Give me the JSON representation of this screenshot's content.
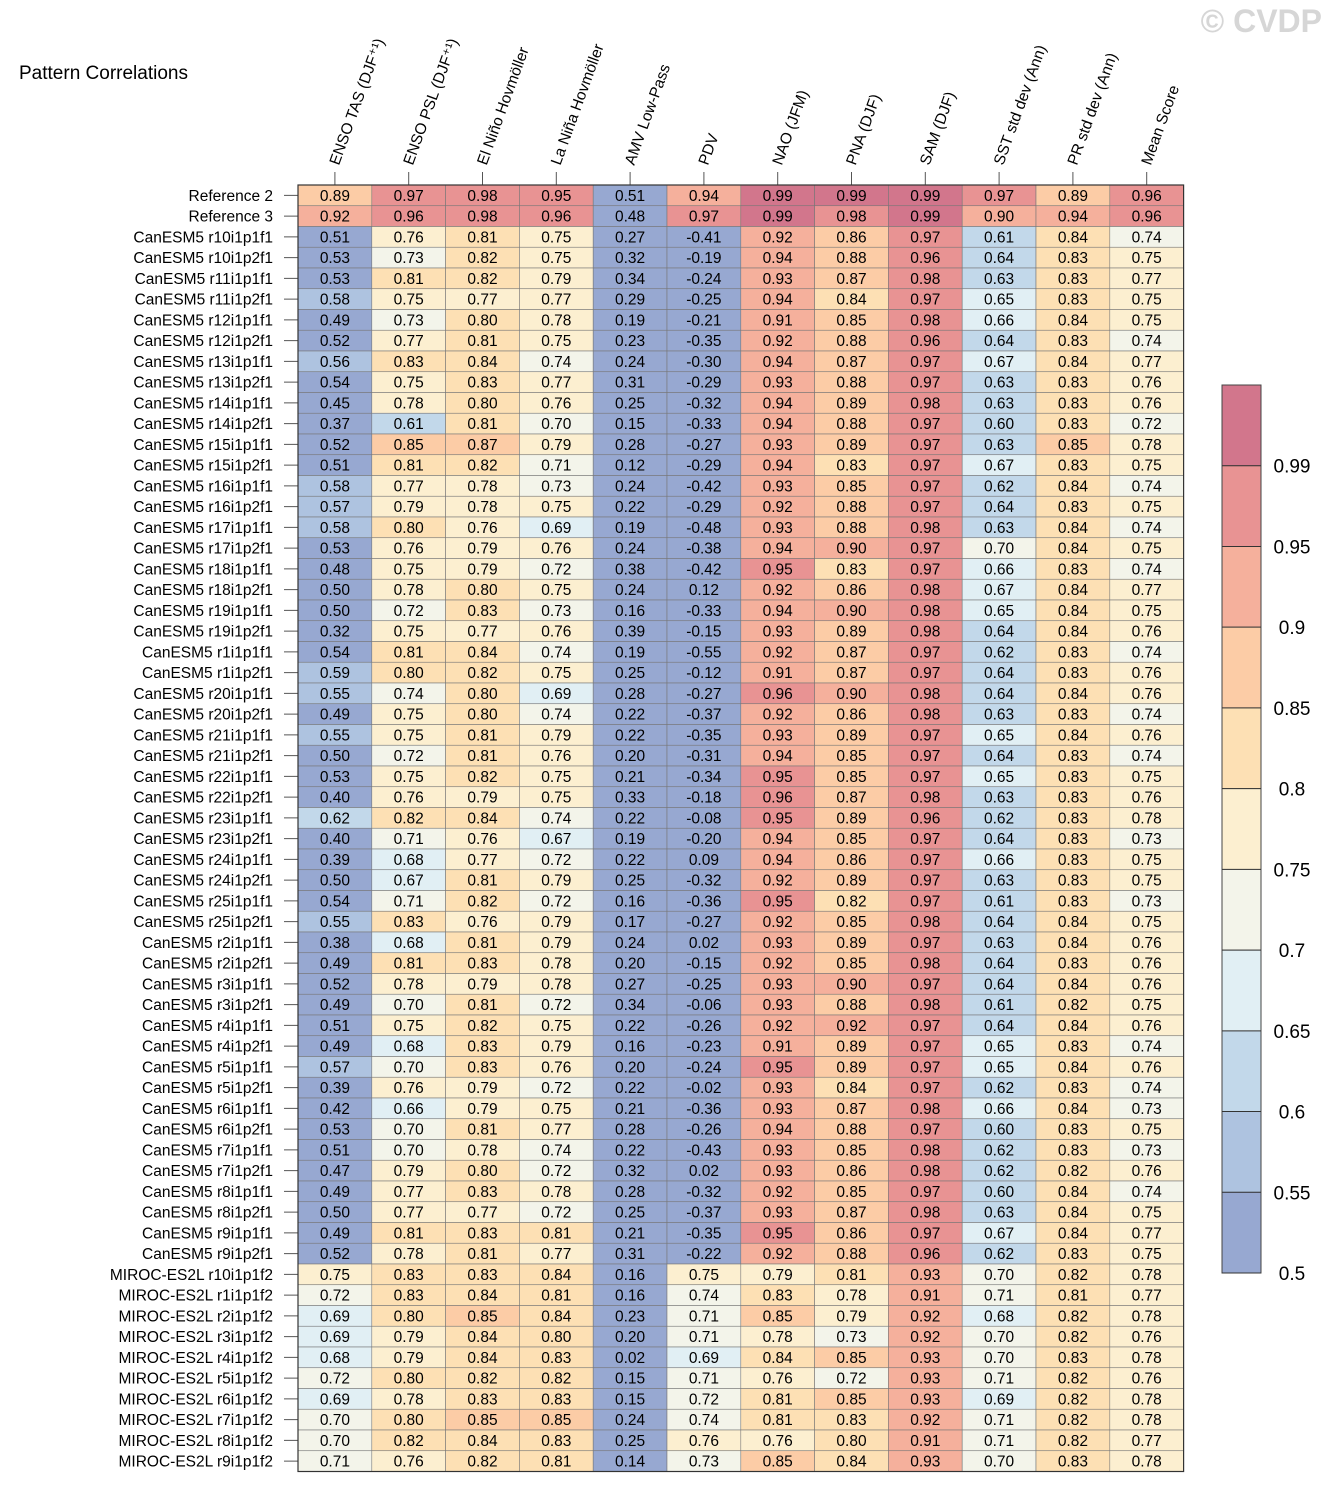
{
  "watermark": "© CVDP",
  "chart_data": {
    "type": "heatmap",
    "title": "Pattern Correlations",
    "columns": [
      "ENSO TAS (DJF⁺¹)",
      "ENSO PSL (DJF⁺¹)",
      "El Niño Hovmöller",
      "La Niña Hovmöller",
      "AMV Low-Pass",
      "PDV",
      "NAO (JFM)",
      "PNA (DJF)",
      "SAM (DJF)",
      "SST std dev (Ann)",
      "PR std dev (Ann)",
      "Mean Score"
    ],
    "rows": [
      "Reference 2",
      "Reference 3",
      "CanESM5 r10i1p1f1",
      "CanESM5 r10i1p2f1",
      "CanESM5 r11i1p1f1",
      "CanESM5 r11i1p2f1",
      "CanESM5 r12i1p1f1",
      "CanESM5 r12i1p2f1",
      "CanESM5 r13i1p1f1",
      "CanESM5 r13i1p2f1",
      "CanESM5 r14i1p1f1",
      "CanESM5 r14i1p2f1",
      "CanESM5 r15i1p1f1",
      "CanESM5 r15i1p2f1",
      "CanESM5 r16i1p1f1",
      "CanESM5 r16i1p2f1",
      "CanESM5 r17i1p1f1",
      "CanESM5 r17i1p2f1",
      "CanESM5 r18i1p1f1",
      "CanESM5 r18i1p2f1",
      "CanESM5 r19i1p1f1",
      "CanESM5 r19i1p2f1",
      "CanESM5 r1i1p1f1",
      "CanESM5 r1i1p2f1",
      "CanESM5 r20i1p1f1",
      "CanESM5 r20i1p2f1",
      "CanESM5 r21i1p1f1",
      "CanESM5 r21i1p2f1",
      "CanESM5 r22i1p1f1",
      "CanESM5 r22i1p2f1",
      "CanESM5 r23i1p1f1",
      "CanESM5 r23i1p2f1",
      "CanESM5 r24i1p1f1",
      "CanESM5 r24i1p2f1",
      "CanESM5 r25i1p1f1",
      "CanESM5 r25i1p2f1",
      "CanESM5 r2i1p1f1",
      "CanESM5 r2i1p2f1",
      "CanESM5 r3i1p1f1",
      "CanESM5 r3i1p2f1",
      "CanESM5 r4i1p1f1",
      "CanESM5 r4i1p2f1",
      "CanESM5 r5i1p1f1",
      "CanESM5 r5i1p2f1",
      "CanESM5 r6i1p1f1",
      "CanESM5 r6i1p2f1",
      "CanESM5 r7i1p1f1",
      "CanESM5 r7i1p2f1",
      "CanESM5 r8i1p1f1",
      "CanESM5 r8i1p2f1",
      "CanESM5 r9i1p1f1",
      "CanESM5 r9i1p2f1",
      "MIROC-ES2L r10i1p1f2",
      "MIROC-ES2L r1i1p1f2",
      "MIROC-ES2L r2i1p1f2",
      "MIROC-ES2L r3i1p1f2",
      "MIROC-ES2L r4i1p1f2",
      "MIROC-ES2L r5i1p1f2",
      "MIROC-ES2L r6i1p1f2",
      "MIROC-ES2L r7i1p1f2",
      "MIROC-ES2L r8i1p1f2",
      "MIROC-ES2L r9i1p1f2"
    ],
    "values": [
      [
        "0.89",
        "0.97",
        "0.98",
        "0.95",
        "0.51",
        "0.94",
        "0.99",
        "0.99",
        "0.99",
        "0.97",
        "0.89",
        "0.96"
      ],
      [
        "0.92",
        "0.96",
        "0.98",
        "0.96",
        "0.48",
        "0.97",
        "0.99",
        "0.98",
        "0.99",
        "0.90",
        "0.94",
        "0.96"
      ],
      [
        "0.51",
        "0.76",
        "0.81",
        "0.75",
        "0.27",
        "-0.41",
        "0.92",
        "0.86",
        "0.97",
        "0.61",
        "0.84",
        "0.74"
      ],
      [
        "0.53",
        "0.73",
        "0.82",
        "0.75",
        "0.32",
        "-0.19",
        "0.94",
        "0.88",
        "0.96",
        "0.64",
        "0.83",
        "0.75"
      ],
      [
        "0.53",
        "0.81",
        "0.82",
        "0.79",
        "0.34",
        "-0.24",
        "0.93",
        "0.87",
        "0.98",
        "0.63",
        "0.83",
        "0.77"
      ],
      [
        "0.58",
        "0.75",
        "0.77",
        "0.77",
        "0.29",
        "-0.25",
        "0.94",
        "0.84",
        "0.97",
        "0.65",
        "0.83",
        "0.75"
      ],
      [
        "0.49",
        "0.73",
        "0.80",
        "0.78",
        "0.19",
        "-0.21",
        "0.91",
        "0.85",
        "0.98",
        "0.66",
        "0.84",
        "0.75"
      ],
      [
        "0.52",
        "0.77",
        "0.81",
        "0.75",
        "0.23",
        "-0.35",
        "0.92",
        "0.88",
        "0.96",
        "0.64",
        "0.83",
        "0.74"
      ],
      [
        "0.56",
        "0.83",
        "0.84",
        "0.74",
        "0.24",
        "-0.30",
        "0.94",
        "0.87",
        "0.97",
        "0.67",
        "0.84",
        "0.77"
      ],
      [
        "0.54",
        "0.75",
        "0.83",
        "0.77",
        "0.31",
        "-0.29",
        "0.93",
        "0.88",
        "0.97",
        "0.63",
        "0.83",
        "0.76"
      ],
      [
        "0.45",
        "0.78",
        "0.80",
        "0.76",
        "0.25",
        "-0.32",
        "0.94",
        "0.89",
        "0.98",
        "0.63",
        "0.83",
        "0.76"
      ],
      [
        "0.37",
        "0.61",
        "0.81",
        "0.70",
        "0.15",
        "-0.33",
        "0.94",
        "0.88",
        "0.97",
        "0.60",
        "0.83",
        "0.72"
      ],
      [
        "0.52",
        "0.85",
        "0.87",
        "0.79",
        "0.28",
        "-0.27",
        "0.93",
        "0.89",
        "0.97",
        "0.63",
        "0.85",
        "0.78"
      ],
      [
        "0.51",
        "0.81",
        "0.82",
        "0.71",
        "0.12",
        "-0.29",
        "0.94",
        "0.83",
        "0.97",
        "0.67",
        "0.83",
        "0.75"
      ],
      [
        "0.58",
        "0.77",
        "0.78",
        "0.73",
        "0.24",
        "-0.42",
        "0.93",
        "0.85",
        "0.97",
        "0.62",
        "0.84",
        "0.74"
      ],
      [
        "0.57",
        "0.79",
        "0.78",
        "0.75",
        "0.22",
        "-0.29",
        "0.92",
        "0.88",
        "0.97",
        "0.64",
        "0.83",
        "0.75"
      ],
      [
        "0.58",
        "0.80",
        "0.76",
        "0.69",
        "0.19",
        "-0.48",
        "0.93",
        "0.88",
        "0.98",
        "0.63",
        "0.84",
        "0.74"
      ],
      [
        "0.53",
        "0.76",
        "0.79",
        "0.76",
        "0.24",
        "-0.38",
        "0.94",
        "0.90",
        "0.97",
        "0.70",
        "0.84",
        "0.75"
      ],
      [
        "0.48",
        "0.75",
        "0.79",
        "0.72",
        "0.38",
        "-0.42",
        "0.95",
        "0.83",
        "0.97",
        "0.66",
        "0.83",
        "0.74"
      ],
      [
        "0.50",
        "0.78",
        "0.80",
        "0.75",
        "0.24",
        "0.12",
        "0.92",
        "0.86",
        "0.98",
        "0.67",
        "0.84",
        "0.77"
      ],
      [
        "0.50",
        "0.72",
        "0.83",
        "0.73",
        "0.16",
        "-0.33",
        "0.94",
        "0.90",
        "0.98",
        "0.65",
        "0.84",
        "0.75"
      ],
      [
        "0.32",
        "0.75",
        "0.77",
        "0.76",
        "0.39",
        "-0.15",
        "0.93",
        "0.89",
        "0.98",
        "0.64",
        "0.84",
        "0.76"
      ],
      [
        "0.54",
        "0.81",
        "0.84",
        "0.74",
        "0.19",
        "-0.55",
        "0.92",
        "0.87",
        "0.97",
        "0.62",
        "0.83",
        "0.74"
      ],
      [
        "0.59",
        "0.80",
        "0.82",
        "0.75",
        "0.25",
        "-0.12",
        "0.91",
        "0.87",
        "0.97",
        "0.64",
        "0.83",
        "0.76"
      ],
      [
        "0.55",
        "0.74",
        "0.80",
        "0.69",
        "0.28",
        "-0.27",
        "0.96",
        "0.90",
        "0.98",
        "0.64",
        "0.84",
        "0.76"
      ],
      [
        "0.49",
        "0.75",
        "0.80",
        "0.74",
        "0.22",
        "-0.37",
        "0.92",
        "0.86",
        "0.98",
        "0.63",
        "0.83",
        "0.74"
      ],
      [
        "0.55",
        "0.75",
        "0.81",
        "0.79",
        "0.22",
        "-0.35",
        "0.93",
        "0.89",
        "0.97",
        "0.65",
        "0.84",
        "0.76"
      ],
      [
        "0.50",
        "0.72",
        "0.81",
        "0.76",
        "0.20",
        "-0.31",
        "0.94",
        "0.85",
        "0.97",
        "0.64",
        "0.83",
        "0.74"
      ],
      [
        "0.53",
        "0.75",
        "0.82",
        "0.75",
        "0.21",
        "-0.34",
        "0.95",
        "0.85",
        "0.97",
        "0.65",
        "0.83",
        "0.75"
      ],
      [
        "0.40",
        "0.76",
        "0.79",
        "0.75",
        "0.33",
        "-0.18",
        "0.96",
        "0.87",
        "0.98",
        "0.63",
        "0.83",
        "0.76"
      ],
      [
        "0.62",
        "0.82",
        "0.84",
        "0.74",
        "0.22",
        "-0.08",
        "0.95",
        "0.89",
        "0.96",
        "0.62",
        "0.83",
        "0.78"
      ],
      [
        "0.40",
        "0.71",
        "0.76",
        "0.67",
        "0.19",
        "-0.20",
        "0.94",
        "0.85",
        "0.97",
        "0.64",
        "0.83",
        "0.73"
      ],
      [
        "0.39",
        "0.68",
        "0.77",
        "0.72",
        "0.22",
        "0.09",
        "0.94",
        "0.86",
        "0.97",
        "0.66",
        "0.83",
        "0.75"
      ],
      [
        "0.50",
        "0.67",
        "0.81",
        "0.79",
        "0.25",
        "-0.32",
        "0.92",
        "0.89",
        "0.97",
        "0.63",
        "0.83",
        "0.75"
      ],
      [
        "0.54",
        "0.71",
        "0.82",
        "0.72",
        "0.16",
        "-0.36",
        "0.95",
        "0.82",
        "0.97",
        "0.61",
        "0.83",
        "0.73"
      ],
      [
        "0.55",
        "0.83",
        "0.76",
        "0.79",
        "0.17",
        "-0.27",
        "0.92",
        "0.85",
        "0.98",
        "0.64",
        "0.84",
        "0.75"
      ],
      [
        "0.38",
        "0.68",
        "0.81",
        "0.79",
        "0.24",
        "0.02",
        "0.93",
        "0.89",
        "0.97",
        "0.63",
        "0.84",
        "0.76"
      ],
      [
        "0.49",
        "0.81",
        "0.83",
        "0.78",
        "0.20",
        "-0.15",
        "0.92",
        "0.85",
        "0.98",
        "0.64",
        "0.83",
        "0.76"
      ],
      [
        "0.52",
        "0.78",
        "0.79",
        "0.78",
        "0.27",
        "-0.25",
        "0.93",
        "0.90",
        "0.97",
        "0.64",
        "0.84",
        "0.76"
      ],
      [
        "0.49",
        "0.70",
        "0.81",
        "0.72",
        "0.34",
        "-0.06",
        "0.93",
        "0.88",
        "0.98",
        "0.61",
        "0.82",
        "0.75"
      ],
      [
        "0.51",
        "0.75",
        "0.82",
        "0.75",
        "0.22",
        "-0.26",
        "0.92",
        "0.92",
        "0.97",
        "0.64",
        "0.84",
        "0.76"
      ],
      [
        "0.49",
        "0.68",
        "0.83",
        "0.79",
        "0.16",
        "-0.23",
        "0.91",
        "0.89",
        "0.97",
        "0.65",
        "0.83",
        "0.74"
      ],
      [
        "0.57",
        "0.70",
        "0.83",
        "0.76",
        "0.20",
        "-0.24",
        "0.95",
        "0.89",
        "0.97",
        "0.65",
        "0.84",
        "0.76"
      ],
      [
        "0.39",
        "0.76",
        "0.79",
        "0.72",
        "0.22",
        "-0.02",
        "0.93",
        "0.84",
        "0.97",
        "0.62",
        "0.83",
        "0.74"
      ],
      [
        "0.42",
        "0.66",
        "0.79",
        "0.75",
        "0.21",
        "-0.36",
        "0.93",
        "0.87",
        "0.98",
        "0.66",
        "0.84",
        "0.73"
      ],
      [
        "0.53",
        "0.70",
        "0.81",
        "0.77",
        "0.28",
        "-0.26",
        "0.94",
        "0.88",
        "0.97",
        "0.60",
        "0.83",
        "0.75"
      ],
      [
        "0.51",
        "0.70",
        "0.78",
        "0.74",
        "0.22",
        "-0.43",
        "0.93",
        "0.85",
        "0.98",
        "0.62",
        "0.83",
        "0.73"
      ],
      [
        "0.47",
        "0.79",
        "0.80",
        "0.72",
        "0.32",
        "0.02",
        "0.93",
        "0.86",
        "0.98",
        "0.62",
        "0.82",
        "0.76"
      ],
      [
        "0.49",
        "0.77",
        "0.83",
        "0.78",
        "0.28",
        "-0.32",
        "0.92",
        "0.85",
        "0.97",
        "0.60",
        "0.84",
        "0.74"
      ],
      [
        "0.50",
        "0.77",
        "0.77",
        "0.72",
        "0.25",
        "-0.37",
        "0.93",
        "0.87",
        "0.98",
        "0.63",
        "0.84",
        "0.75"
      ],
      [
        "0.49",
        "0.81",
        "0.83",
        "0.81",
        "0.21",
        "-0.35",
        "0.95",
        "0.86",
        "0.97",
        "0.67",
        "0.84",
        "0.77"
      ],
      [
        "0.52",
        "0.78",
        "0.81",
        "0.77",
        "0.31",
        "-0.22",
        "0.92",
        "0.88",
        "0.96",
        "0.62",
        "0.83",
        "0.75"
      ],
      [
        "0.75",
        "0.83",
        "0.83",
        "0.84",
        "0.16",
        "0.75",
        "0.79",
        "0.81",
        "0.93",
        "0.70",
        "0.82",
        "0.78"
      ],
      [
        "0.72",
        "0.83",
        "0.84",
        "0.81",
        "0.16",
        "0.74",
        "0.83",
        "0.78",
        "0.91",
        "0.71",
        "0.81",
        "0.77"
      ],
      [
        "0.69",
        "0.80",
        "0.85",
        "0.84",
        "0.23",
        "0.71",
        "0.85",
        "0.79",
        "0.92",
        "0.68",
        "0.82",
        "0.78"
      ],
      [
        "0.69",
        "0.79",
        "0.84",
        "0.80",
        "0.20",
        "0.71",
        "0.78",
        "0.73",
        "0.92",
        "0.70",
        "0.82",
        "0.76"
      ],
      [
        "0.68",
        "0.79",
        "0.84",
        "0.83",
        "0.02",
        "0.69",
        "0.84",
        "0.85",
        "0.93",
        "0.70",
        "0.83",
        "0.78"
      ],
      [
        "0.72",
        "0.80",
        "0.82",
        "0.82",
        "0.15",
        "0.71",
        "0.76",
        "0.72",
        "0.93",
        "0.71",
        "0.82",
        "0.76"
      ],
      [
        "0.69",
        "0.78",
        "0.83",
        "0.83",
        "0.15",
        "0.72",
        "0.81",
        "0.85",
        "0.93",
        "0.69",
        "0.82",
        "0.78"
      ],
      [
        "0.70",
        "0.80",
        "0.85",
        "0.85",
        "0.24",
        "0.74",
        "0.81",
        "0.83",
        "0.92",
        "0.71",
        "0.82",
        "0.78"
      ],
      [
        "0.70",
        "0.82",
        "0.84",
        "0.83",
        "0.25",
        "0.76",
        "0.76",
        "0.80",
        "0.91",
        "0.71",
        "0.82",
        "0.77"
      ],
      [
        "0.71",
        "0.76",
        "0.82",
        "0.81",
        "0.14",
        "0.73",
        "0.85",
        "0.84",
        "0.93",
        "0.70",
        "0.83",
        "0.78"
      ]
    ],
    "colorbar": {
      "tick_labels": [
        "0.99",
        "0.95",
        "0.9",
        "0.85",
        "0.8",
        "0.75",
        "0.7",
        "0.65",
        "0.6",
        "0.55",
        "0.5"
      ],
      "levels": [
        0.5,
        0.55,
        0.6,
        0.65,
        0.7,
        0.75,
        0.8,
        0.85,
        0.9,
        0.95,
        0.99
      ],
      "colors": [
        "#97a8d1",
        "#aec3e0",
        "#c2d8ea",
        "#e1eff4",
        "#f3f4ea",
        "#fcefd0",
        "#fde0b4",
        "#fccca6",
        "#f5b09c",
        "#e89393",
        "#d2768c"
      ]
    }
  }
}
